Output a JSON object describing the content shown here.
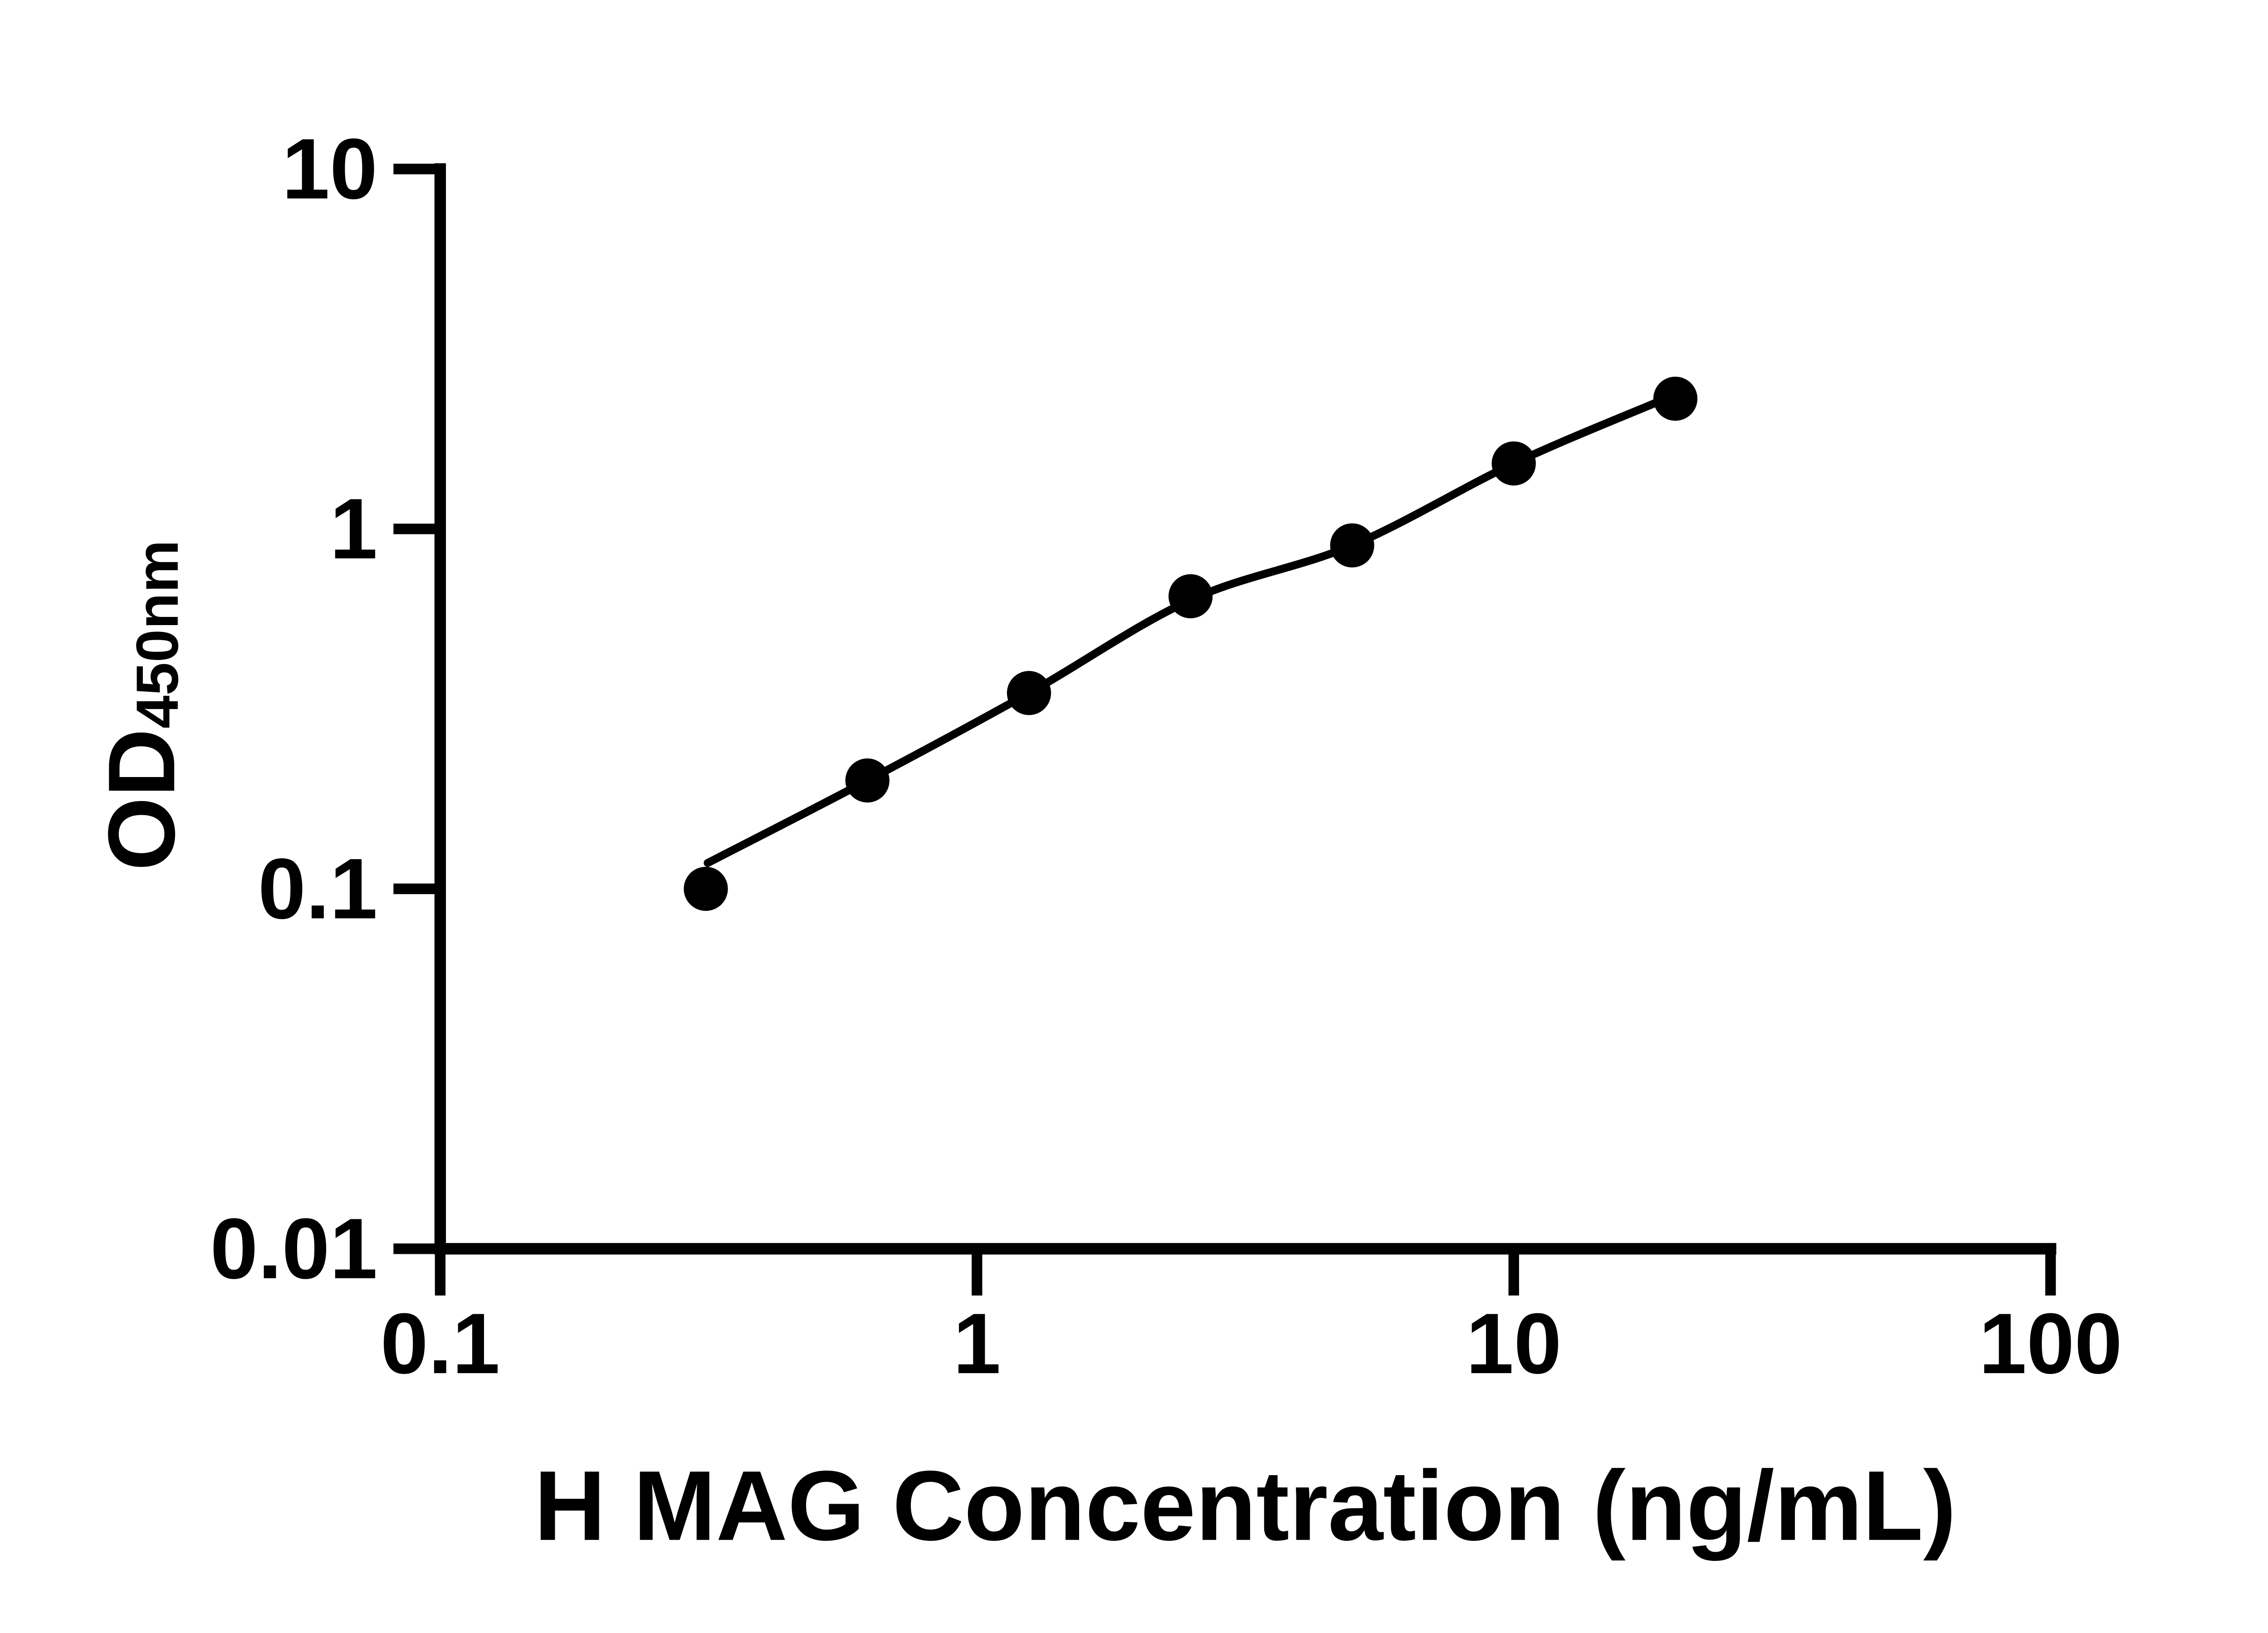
{
  "chart_data": {
    "type": "scatter",
    "title": "",
    "xlabel": "H MAG Concentration (ng/mL)",
    "ylabel": "OD450nm",
    "ylabel_main": "OD",
    "ylabel_sub": "450nm",
    "x_scale": "log",
    "y_scale": "log",
    "xlim": [
      0.1,
      100
    ],
    "ylim": [
      0.01,
      10
    ],
    "x_ticks": [
      {
        "value": 0.1,
        "label": "0.1"
      },
      {
        "value": 1,
        "label": "1"
      },
      {
        "value": 10,
        "label": "10"
      },
      {
        "value": 100,
        "label": "100"
      }
    ],
    "y_ticks": [
      {
        "value": 0.01,
        "label": "0.01"
      },
      {
        "value": 0.1,
        "label": "0.1"
      },
      {
        "value": 1,
        "label": "1"
      },
      {
        "value": 10,
        "label": "10"
      }
    ],
    "grid": false,
    "legend": "none",
    "series": [
      {
        "name": "",
        "marker": "filled-circle",
        "x": [
          0.3125,
          0.625,
          1.25,
          2.5,
          5,
          10,
          20
        ],
        "y": [
          0.1,
          0.2,
          0.35,
          0.65,
          0.9,
          1.52,
          2.3
        ]
      }
    ],
    "fit_curve": [
      [
        0.315,
        0.118
      ],
      [
        0.625,
        0.2
      ],
      [
        1.25,
        0.35
      ],
      [
        2.5,
        0.635
      ],
      [
        5,
        0.9
      ],
      [
        10,
        1.52
      ],
      [
        18.5,
        2.25
      ]
    ],
    "colors": {
      "marker": "#000000",
      "line": "#000000",
      "axis": "#000000",
      "text": "#000000",
      "background": "#ffffff"
    }
  }
}
